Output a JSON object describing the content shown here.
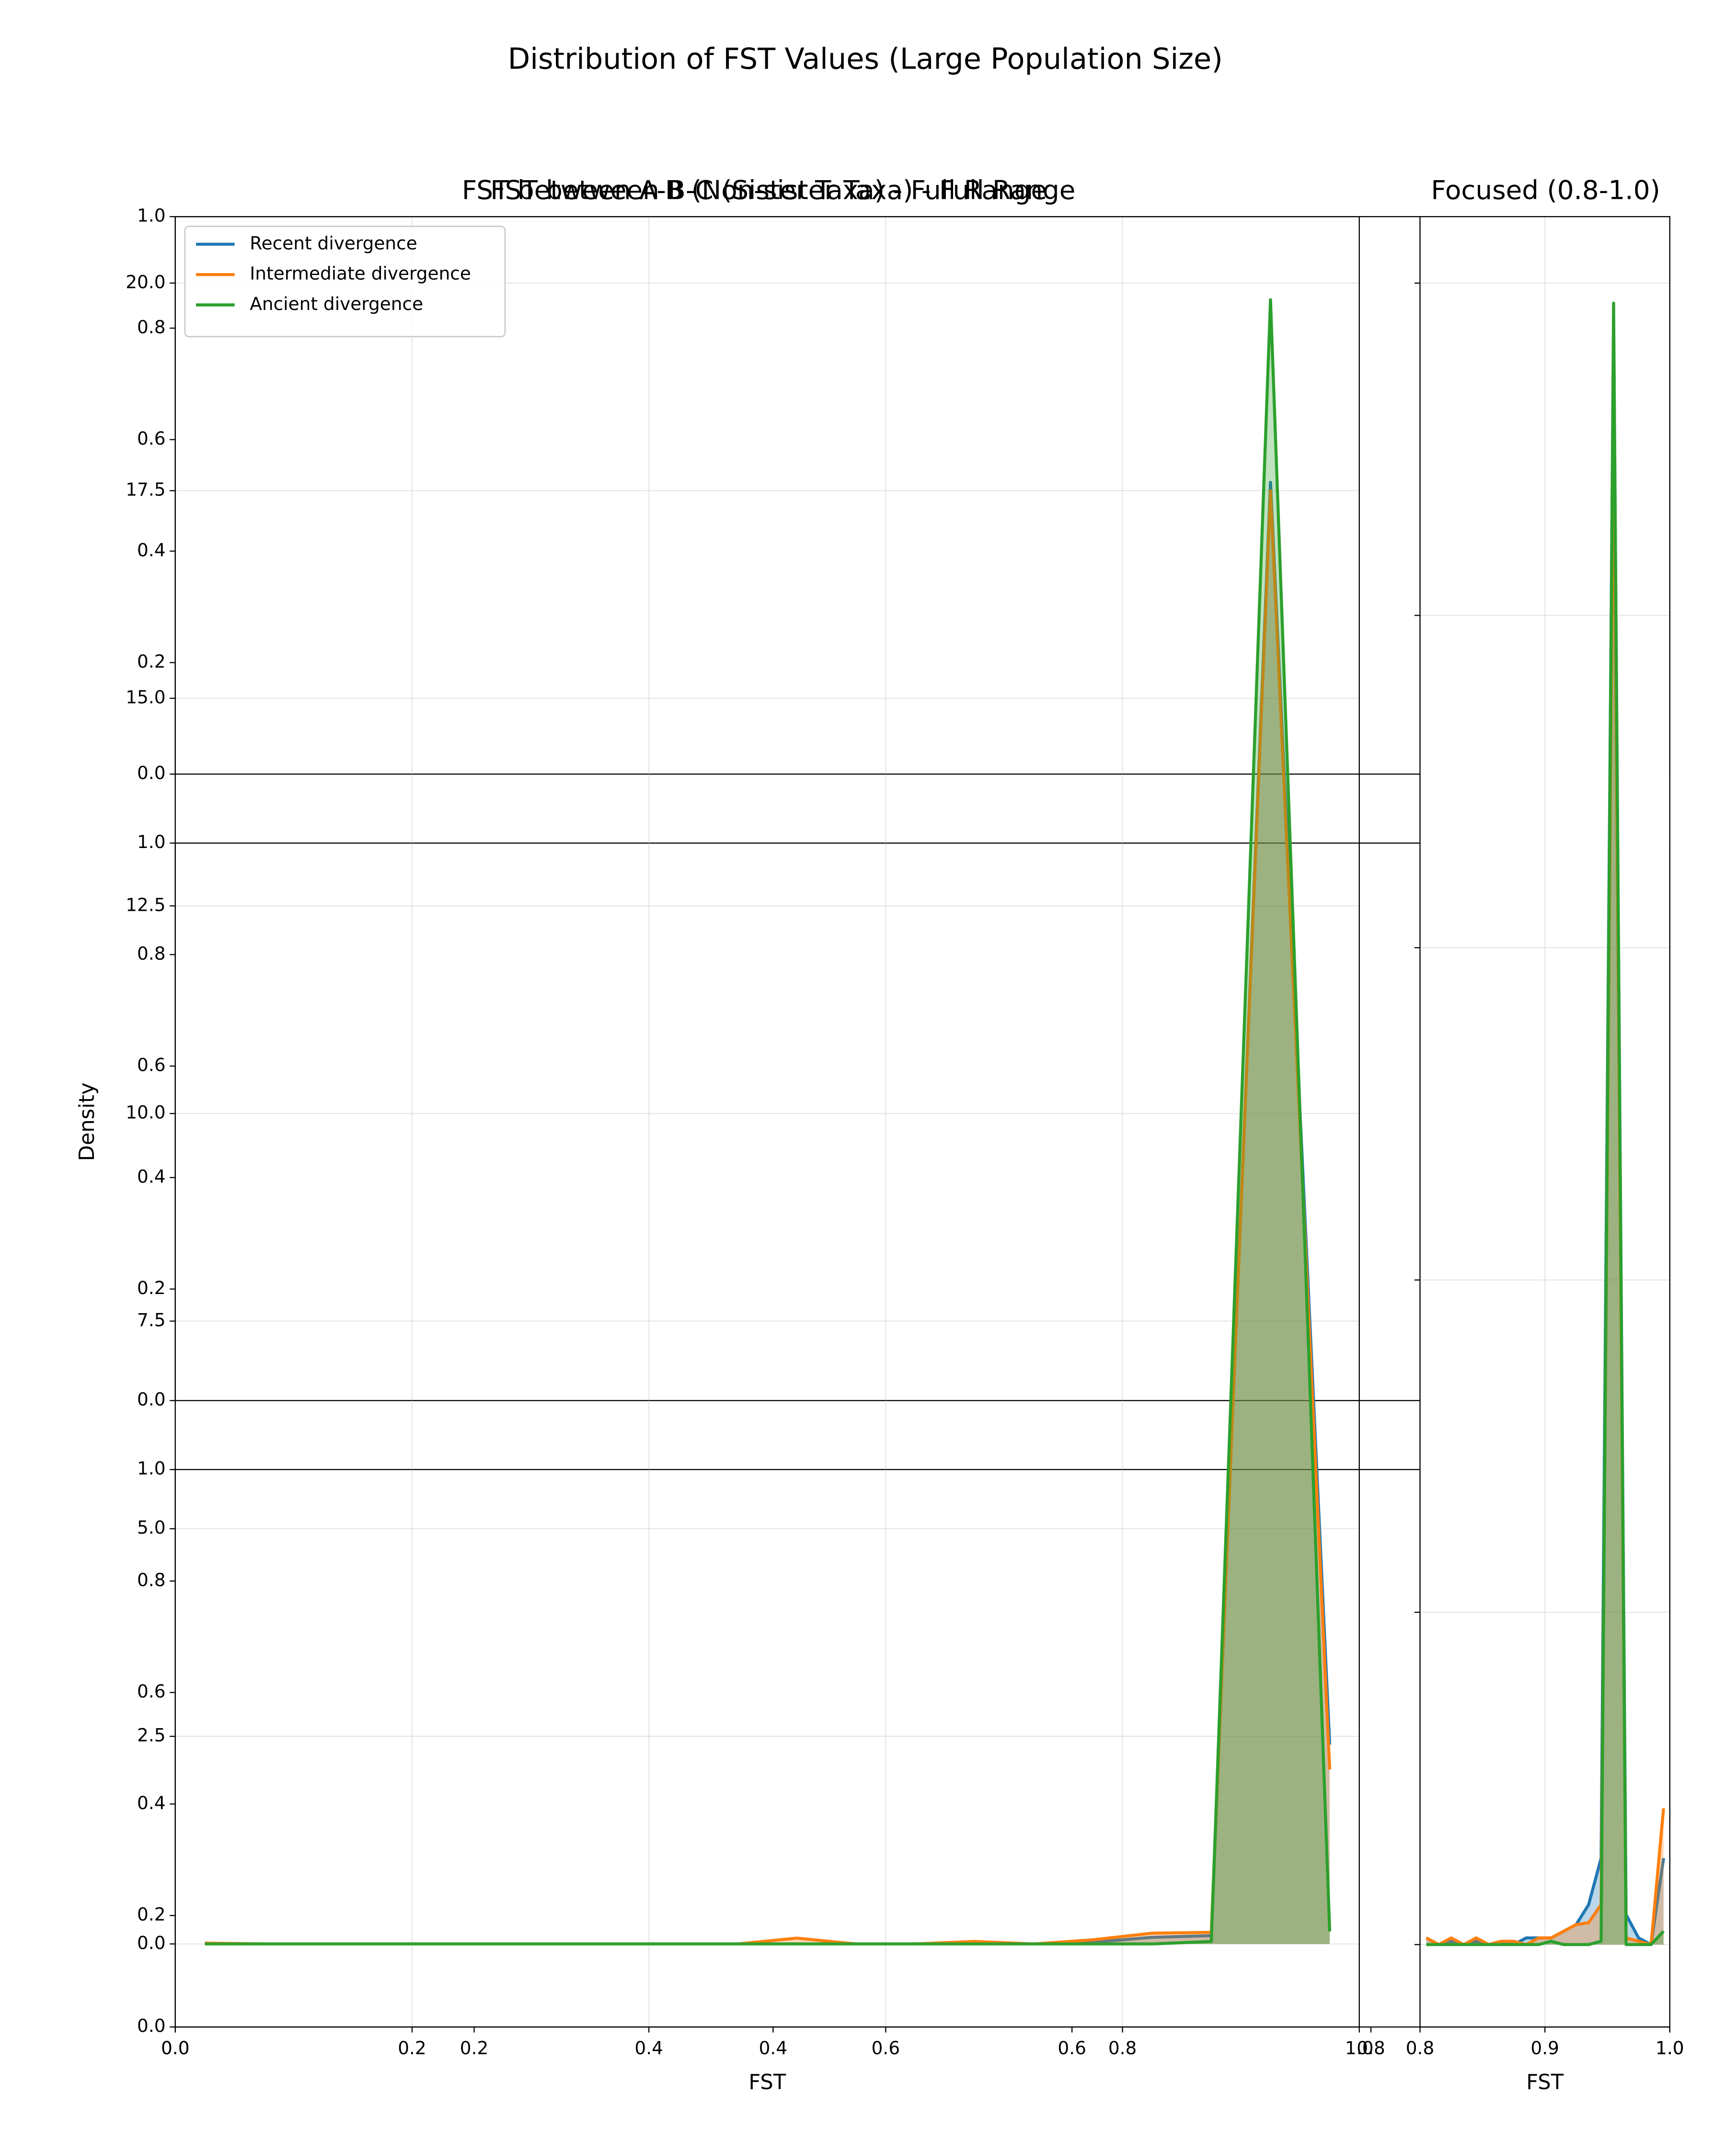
{
  "title": "Distribution of FST Values (Large Population Size)",
  "chart_data": [
    {
      "type": "line",
      "title": "FST between B-C (Sister Taxa) - Full Range",
      "ylim": [
        0,
        1
      ],
      "yticks": [
        {
          "value": 0,
          "label": "0.0"
        },
        0.2,
        0.4,
        0.6,
        0.8,
        {
          "value": 1,
          "label": "1.0"
        }
      ],
      "xlim": [
        0,
        1
      ],
      "grid": false,
      "series": []
    },
    {
      "type": "line",
      "ylim": [
        0,
        1
      ],
      "yticks": [
        {
          "value": 0,
          "label": "0.0"
        },
        0.2,
        0.4,
        0.6,
        0.8,
        {
          "value": 1,
          "label": "1.0"
        }
      ],
      "xlim": [
        0,
        1
      ],
      "grid": false,
      "series": []
    },
    {
      "type": "line",
      "ylim": [
        0,
        1
      ],
      "yticks": [
        {
          "value": 0,
          "label": "0.0"
        },
        0.2,
        0.4,
        0.6,
        0.8,
        {
          "value": 1,
          "label": "1.0"
        }
      ],
      "xlim": [
        0,
        1
      ],
      "xticks": [
        {
          "value": 0,
          "label": "0.0"
        },
        0.2,
        0.4,
        0.6,
        0.8,
        {
          "value": 1,
          "label": "1.0"
        }
      ],
      "grid": false,
      "series": []
    },
    {
      "type": "line",
      "title": "FST between A-B (Non-sister Taxa) - Full Range",
      "x_label": "FST",
      "y_label": "Density",
      "grid": true,
      "fill": true,
      "legend": "upper left",
      "xlim": [
        0,
        1
      ],
      "xticks": [
        {
          "value": 0,
          "label": "0.0"
        },
        0.2,
        0.4,
        0.6,
        0.8,
        {
          "value": 1,
          "label": "1.0"
        }
      ],
      "ylim": [
        -1,
        20.8
      ],
      "yticks": [
        {
          "value": 0,
          "label": "0.0"
        },
        2.5,
        {
          "value": 5,
          "label": "5.0"
        },
        7.5,
        {
          "value": 10,
          "label": "10.0"
        },
        12.5,
        {
          "value": 15,
          "label": "15.0"
        },
        17.5,
        {
          "value": 20,
          "label": "20.0"
        }
      ],
      "x": [
        0.025,
        0.075,
        0.125,
        0.175,
        0.225,
        0.275,
        0.325,
        0.375,
        0.425,
        0.475,
        0.525,
        0.575,
        0.625,
        0.675,
        0.725,
        0.775,
        0.825,
        0.875,
        0.925,
        0.975
      ],
      "series": [
        {
          "name": "Recent divergence",
          "color": "#1f77b4",
          "values": [
            0,
            0,
            0,
            0,
            0,
            0,
            0,
            0,
            0,
            0,
            0,
            0,
            0,
            0,
            0,
            0.02,
            0.08,
            0.1,
            17.6,
            2.4
          ]
        },
        {
          "name": "Intermediate divergence",
          "color": "#ff7f0e",
          "values": [
            0.01,
            0,
            0,
            0,
            0,
            0,
            0,
            0,
            0,
            0,
            0.07,
            0,
            0,
            0.03,
            0,
            0.05,
            0.13,
            0.14,
            17.5,
            2.1
          ]
        },
        {
          "name": "Ancient divergence",
          "color": "#2ca02c",
          "values": [
            0,
            0,
            0,
            0,
            0,
            0,
            0,
            0,
            0,
            0,
            0,
            0,
            0,
            0,
            0,
            0,
            0,
            0.03,
            19.8,
            0.15
          ]
        }
      ]
    },
    {
      "type": "line",
      "title": "Focused (0.8-1.0)",
      "x_label": "FST",
      "grid": true,
      "fill": true,
      "background": "#ffffff",
      "show_ytick_labels": false,
      "xlim": [
        0.8,
        1.0
      ],
      "xticks": [
        0.8,
        0.9,
        {
          "value": 1,
          "label": "1.0"
        }
      ],
      "ylim": [
        -1.24,
        26
      ],
      "yticks": [
        0,
        5,
        10,
        15,
        20,
        25
      ],
      "x": [
        0.805,
        0.815,
        0.825,
        0.835,
        0.845,
        0.855,
        0.865,
        0.875,
        0.885,
        0.895,
        0.905,
        0.915,
        0.925,
        0.935,
        0.945,
        0.955,
        0.965,
        0.975,
        0.985,
        0.995
      ],
      "series": [
        {
          "name": "Recent divergence",
          "color": "#1f77b4",
          "values": [
            0.1,
            0,
            0.05,
            0,
            0.05,
            0,
            0.05,
            0,
            0.1,
            0.1,
            0.1,
            0.2,
            0.3,
            0.6,
            1.3,
            24.5,
            0.45,
            0.1,
            0,
            1.3
          ]
        },
        {
          "name": "Intermediate divergence",
          "color": "#ff7f0e",
          "values": [
            0.1,
            0,
            0.1,
            0,
            0.1,
            0,
            0.05,
            0.05,
            0,
            0.1,
            0.1,
            0.2,
            0.3,
            0.33,
            0.6,
            23,
            0.1,
            0.05,
            0,
            2.05
          ]
        },
        {
          "name": "Ancient divergence",
          "color": "#2ca02c",
          "values": [
            0,
            0,
            0,
            0,
            0,
            0,
            0,
            0,
            0,
            0,
            0.05,
            0,
            0,
            0,
            0.05,
            24.7,
            0,
            0,
            0,
            0.2
          ]
        }
      ]
    }
  ]
}
